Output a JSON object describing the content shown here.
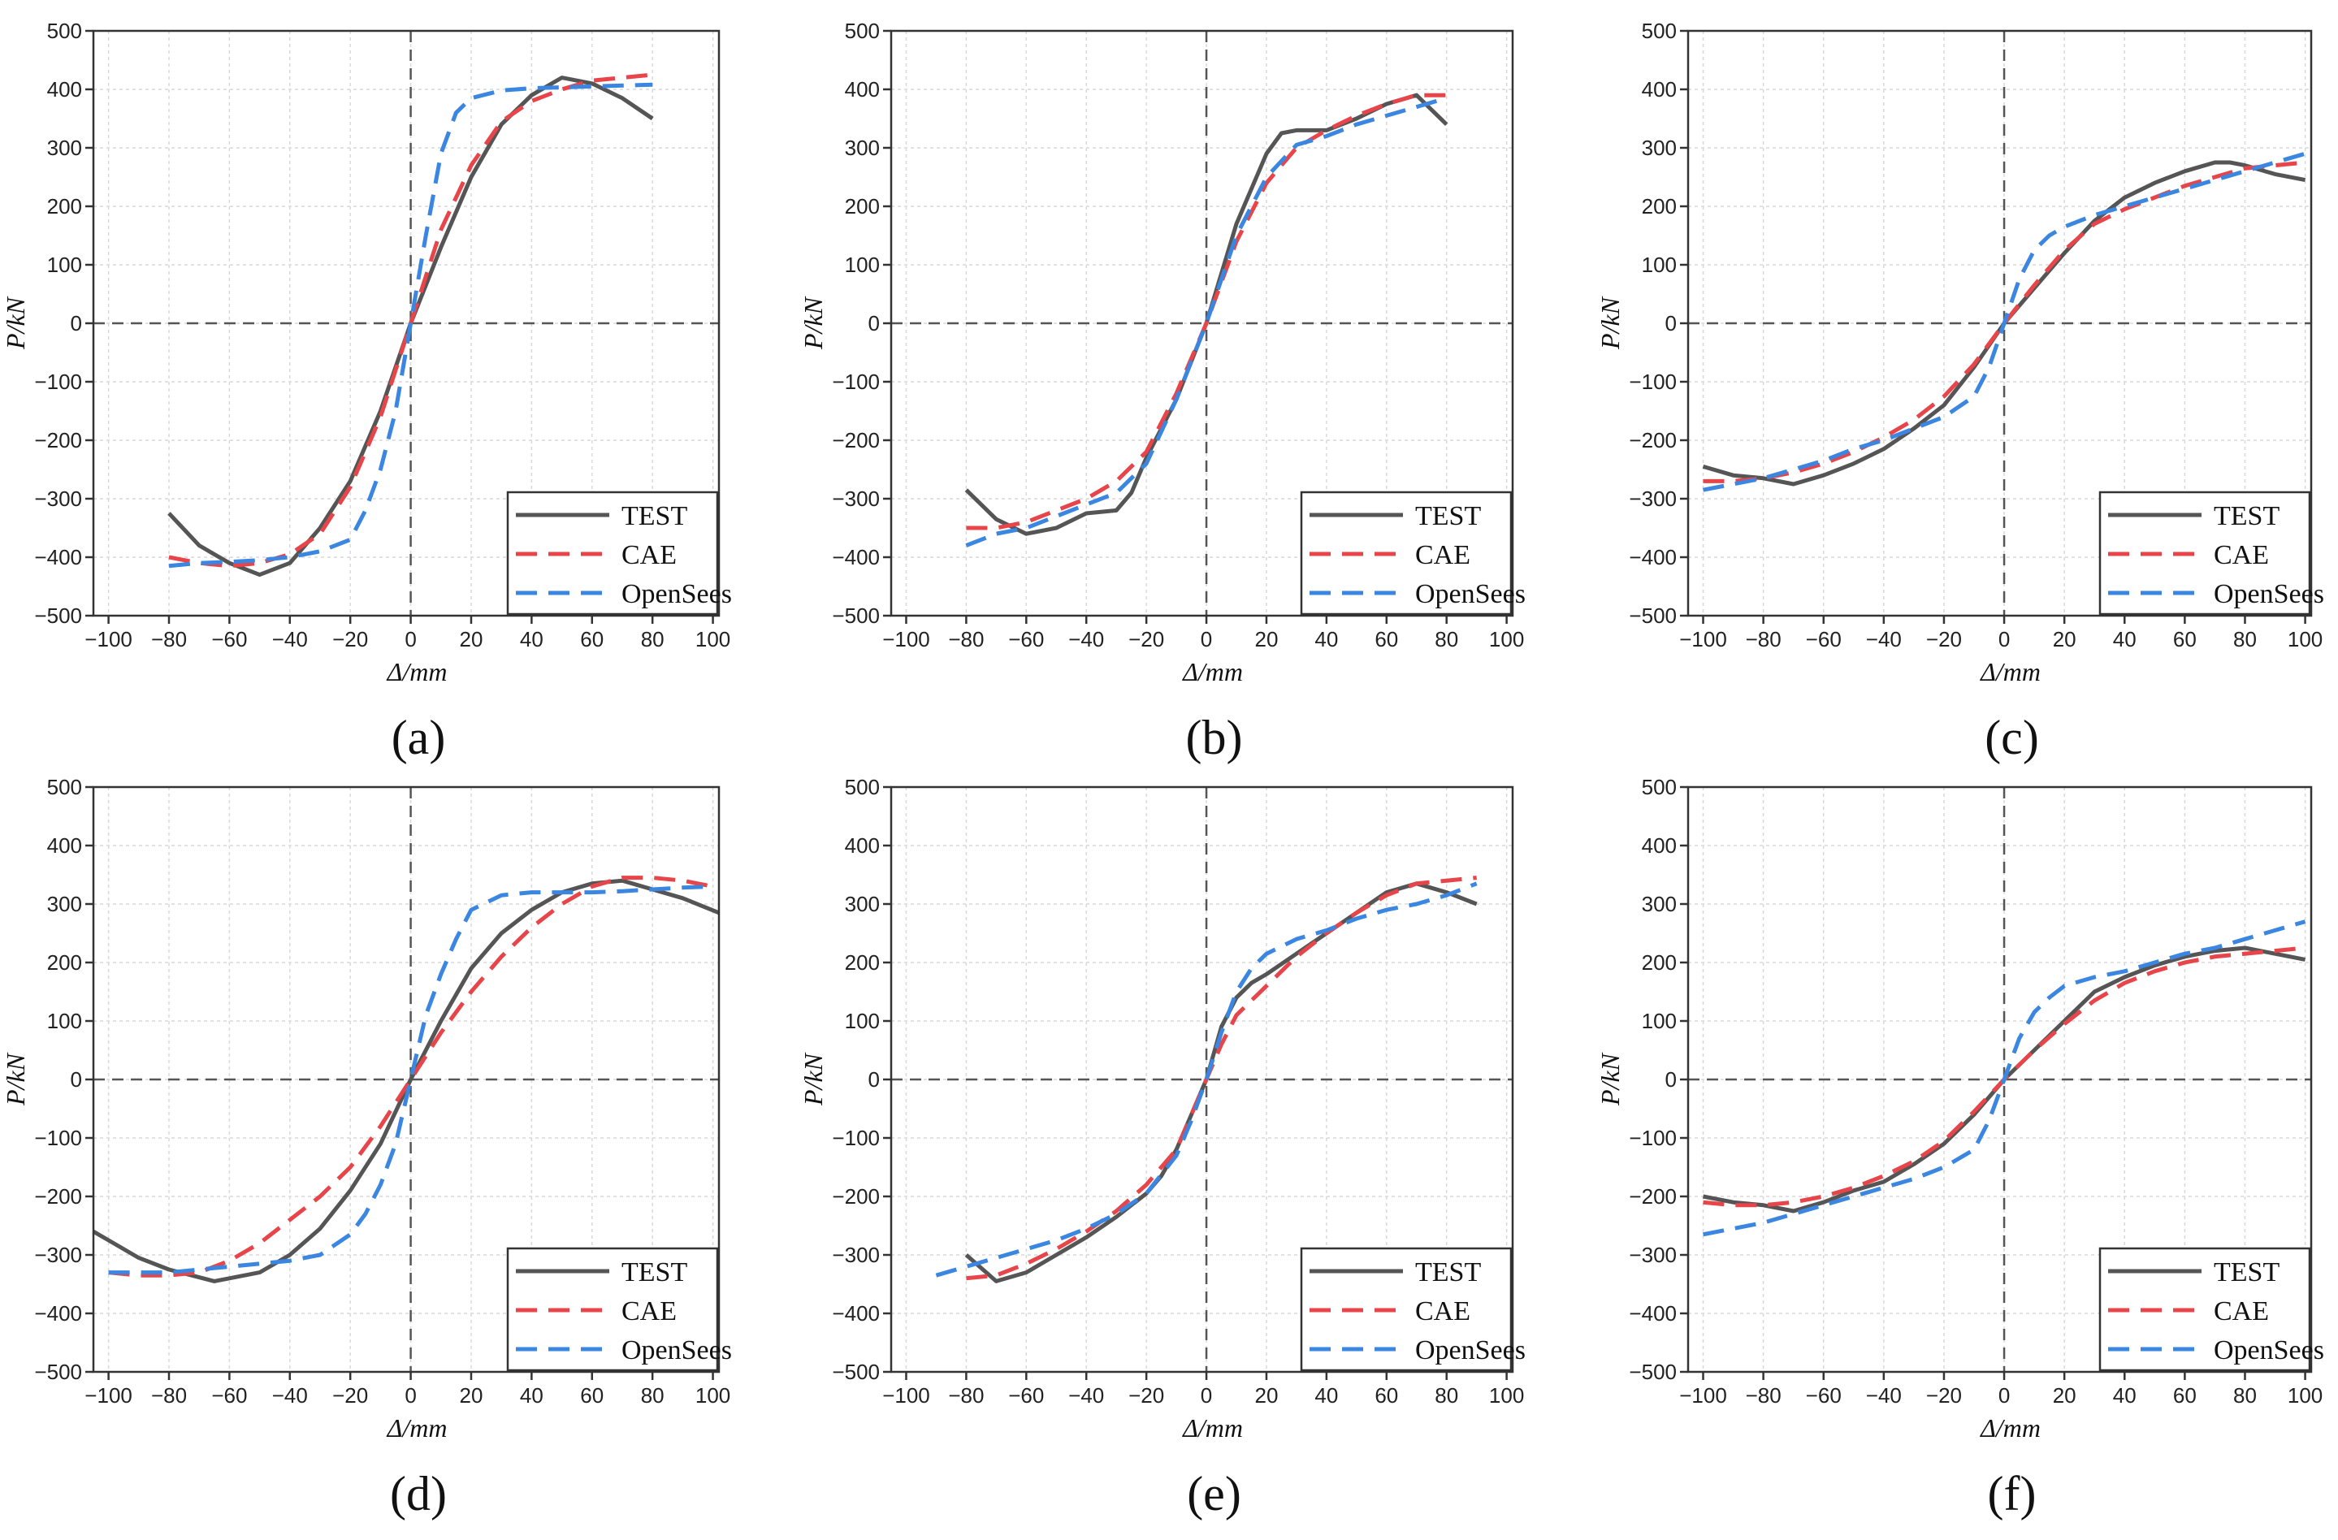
{
  "figure": {
    "x_axis_label": "Δ/mm",
    "y_axis_label": "P/kN",
    "legend": [
      "TEST",
      "CAE",
      "OpenSees"
    ],
    "colors": {
      "TEST": "#555555",
      "CAE": "#e8454a",
      "OpenSees": "#3a86e0",
      "grid": "#d9d9d9",
      "zero_line": "#555555"
    }
  },
  "chart_data": [
    {
      "type": "line",
      "panel_label": "(a)",
      "xlabel": "Δ/mm",
      "ylabel": "P/kN",
      "xlim": [
        -105,
        102
      ],
      "ylim": [
        -500,
        500
      ],
      "xticks": [
        -100,
        -80,
        -60,
        -40,
        -20,
        0,
        20,
        40,
        60,
        80,
        100
      ],
      "yticks": [
        -500,
        -400,
        -300,
        -200,
        -100,
        0,
        100,
        200,
        300,
        400,
        500
      ],
      "series": [
        {
          "name": "TEST",
          "x": [
            -80,
            -70,
            -60,
            -50,
            -40,
            -30,
            -20,
            -10,
            0,
            10,
            20,
            30,
            40,
            50,
            60,
            70,
            80
          ],
          "y": [
            -325,
            -380,
            -410,
            -430,
            -410,
            -350,
            -270,
            -150,
            0,
            130,
            250,
            340,
            390,
            420,
            410,
            385,
            350
          ]
        },
        {
          "name": "CAE",
          "x": [
            -80,
            -70,
            -60,
            -50,
            -40,
            -30,
            -20,
            -10,
            0,
            10,
            20,
            30,
            40,
            50,
            60,
            70,
            80
          ],
          "y": [
            -400,
            -410,
            -415,
            -410,
            -395,
            -360,
            -280,
            -160,
            0,
            160,
            270,
            345,
            380,
            400,
            415,
            420,
            425
          ]
        },
        {
          "name": "OpenSees",
          "x": [
            -80,
            -70,
            -60,
            -50,
            -40,
            -30,
            -20,
            -15,
            -10,
            -5,
            0,
            5,
            10,
            15,
            20,
            30,
            40,
            60,
            80
          ],
          "y": [
            -415,
            -410,
            -408,
            -405,
            -400,
            -390,
            -370,
            -320,
            -250,
            -150,
            0,
            150,
            290,
            360,
            385,
            398,
            402,
            405,
            408
          ]
        }
      ]
    },
    {
      "type": "line",
      "panel_label": "(b)",
      "xlabel": "Δ/mm",
      "ylabel": "P/kN",
      "xlim": [
        -105,
        102
      ],
      "ylim": [
        -500,
        500
      ],
      "xticks": [
        -100,
        -80,
        -60,
        -40,
        -20,
        0,
        20,
        40,
        60,
        80,
        100
      ],
      "yticks": [
        -500,
        -400,
        -300,
        -200,
        -100,
        0,
        100,
        200,
        300,
        400,
        500
      ],
      "series": [
        {
          "name": "TEST",
          "x": [
            -80,
            -70,
            -60,
            -50,
            -40,
            -30,
            -25,
            -20,
            -10,
            0,
            10,
            20,
            25,
            30,
            40,
            50,
            60,
            70,
            80
          ],
          "y": [
            -285,
            -335,
            -360,
            -350,
            -325,
            -320,
            -290,
            -230,
            -130,
            0,
            170,
            290,
            325,
            330,
            330,
            350,
            375,
            390,
            340
          ]
        },
        {
          "name": "CAE",
          "x": [
            -80,
            -70,
            -60,
            -50,
            -40,
            -30,
            -20,
            -10,
            0,
            10,
            20,
            30,
            40,
            50,
            60,
            70,
            80
          ],
          "y": [
            -350,
            -350,
            -340,
            -320,
            -300,
            -270,
            -220,
            -120,
            0,
            140,
            240,
            300,
            330,
            355,
            375,
            390,
            390
          ]
        },
        {
          "name": "OpenSees",
          "x": [
            -80,
            -70,
            -60,
            -50,
            -40,
            -30,
            -20,
            -10,
            0,
            10,
            20,
            30,
            40,
            50,
            60,
            70,
            80
          ],
          "y": [
            -380,
            -360,
            -350,
            -330,
            -310,
            -290,
            -240,
            -130,
            0,
            150,
            250,
            305,
            320,
            340,
            355,
            370,
            385
          ]
        }
      ]
    },
    {
      "type": "line",
      "panel_label": "(c)",
      "xlabel": "Δ/mm",
      "ylabel": "P/kN",
      "xlim": [
        -105,
        102
      ],
      "ylim": [
        -500,
        500
      ],
      "xticks": [
        -100,
        -80,
        -60,
        -40,
        -20,
        0,
        20,
        40,
        60,
        80,
        100
      ],
      "yticks": [
        -500,
        -400,
        -300,
        -200,
        -100,
        0,
        100,
        200,
        300,
        400,
        500
      ],
      "series": [
        {
          "name": "TEST",
          "x": [
            -100,
            -90,
            -80,
            -70,
            -60,
            -50,
            -40,
            -30,
            -20,
            -10,
            0,
            10,
            20,
            30,
            40,
            50,
            60,
            70,
            75,
            80,
            90,
            100
          ],
          "y": [
            -245,
            -260,
            -265,
            -275,
            -260,
            -240,
            -215,
            -180,
            -140,
            -75,
            0,
            60,
            120,
            175,
            215,
            240,
            260,
            275,
            275,
            270,
            255,
            245
          ]
        },
        {
          "name": "CAE",
          "x": [
            -100,
            -90,
            -80,
            -70,
            -60,
            -50,
            -40,
            -30,
            -20,
            -10,
            0,
            10,
            20,
            30,
            40,
            50,
            60,
            70,
            80,
            90,
            100
          ],
          "y": [
            -270,
            -270,
            -265,
            -255,
            -240,
            -220,
            -195,
            -165,
            -125,
            -70,
            0,
            65,
            125,
            170,
            195,
            215,
            235,
            250,
            265,
            270,
            275
          ]
        },
        {
          "name": "OpenSees",
          "x": [
            -100,
            -90,
            -80,
            -70,
            -60,
            -50,
            -40,
            -30,
            -20,
            -10,
            -5,
            0,
            5,
            10,
            15,
            20,
            30,
            40,
            50,
            60,
            70,
            80,
            90,
            100
          ],
          "y": [
            -285,
            -275,
            -265,
            -250,
            -235,
            -215,
            -200,
            -180,
            -160,
            -125,
            -75,
            0,
            75,
            125,
            150,
            165,
            185,
            200,
            215,
            230,
            245,
            260,
            275,
            290
          ]
        }
      ]
    },
    {
      "type": "line",
      "panel_label": "(d)",
      "xlabel": "Δ/mm",
      "ylabel": "P/kN",
      "xlim": [
        -105,
        102
      ],
      "ylim": [
        -500,
        500
      ],
      "xticks": [
        -100,
        -80,
        -60,
        -40,
        -20,
        0,
        20,
        40,
        60,
        80,
        100
      ],
      "yticks": [
        -500,
        -400,
        -300,
        -200,
        -100,
        0,
        100,
        200,
        300,
        400,
        500
      ],
      "series": [
        {
          "name": "TEST",
          "x": [
            -105,
            -90,
            -80,
            -65,
            -50,
            -40,
            -30,
            -20,
            -10,
            0,
            10,
            20,
            30,
            40,
            50,
            60,
            70,
            80,
            90,
            102
          ],
          "y": [
            -260,
            -305,
            -325,
            -345,
            -330,
            -300,
            -255,
            -190,
            -110,
            0,
            100,
            190,
            250,
            290,
            320,
            335,
            340,
            325,
            310,
            285
          ]
        },
        {
          "name": "CAE",
          "x": [
            -100,
            -90,
            -80,
            -70,
            -60,
            -50,
            -40,
            -30,
            -20,
            -10,
            0,
            10,
            20,
            30,
            40,
            50,
            60,
            70,
            80,
            90,
            100
          ],
          "y": [
            -330,
            -335,
            -335,
            -330,
            -310,
            -280,
            -240,
            -200,
            -150,
            -80,
            0,
            80,
            150,
            210,
            260,
            300,
            330,
            345,
            345,
            340,
            330
          ]
        },
        {
          "name": "OpenSees",
          "x": [
            -100,
            -90,
            -80,
            -70,
            -60,
            -50,
            -40,
            -30,
            -20,
            -15,
            -10,
            -5,
            0,
            5,
            10,
            15,
            20,
            30,
            40,
            50,
            60,
            70,
            80,
            90,
            100
          ],
          "y": [
            -330,
            -330,
            -330,
            -325,
            -320,
            -315,
            -310,
            -300,
            -265,
            -230,
            -180,
            -110,
            0,
            110,
            180,
            240,
            290,
            315,
            320,
            320,
            320,
            322,
            325,
            328,
            330
          ]
        }
      ]
    },
    {
      "type": "line",
      "panel_label": "(e)",
      "xlabel": "Δ/mm",
      "ylabel": "P/kN",
      "xlim": [
        -105,
        102
      ],
      "ylim": [
        -500,
        500
      ],
      "xticks": [
        -100,
        -80,
        -60,
        -40,
        -20,
        0,
        20,
        40,
        60,
        80,
        100
      ],
      "yticks": [
        -500,
        -400,
        -300,
        -200,
        -100,
        0,
        100,
        200,
        300,
        400,
        500
      ],
      "series": [
        {
          "name": "TEST",
          "x": [
            -80,
            -70,
            -60,
            -50,
            -40,
            -30,
            -20,
            -15,
            -10,
            -5,
            0,
            5,
            10,
            15,
            20,
            30,
            40,
            50,
            60,
            70,
            80,
            90
          ],
          "y": [
            -300,
            -345,
            -330,
            -300,
            -270,
            -235,
            -195,
            -165,
            -120,
            -60,
            0,
            90,
            140,
            165,
            180,
            215,
            250,
            285,
            320,
            335,
            320,
            300
          ]
        },
        {
          "name": "CAE",
          "x": [
            -80,
            -70,
            -60,
            -50,
            -40,
            -30,
            -20,
            -10,
            -5,
            0,
            5,
            10,
            20,
            30,
            40,
            50,
            60,
            70,
            80,
            90
          ],
          "y": [
            -340,
            -335,
            -315,
            -290,
            -260,
            -225,
            -180,
            -120,
            -60,
            0,
            60,
            110,
            160,
            210,
            250,
            285,
            315,
            335,
            340,
            345
          ]
        },
        {
          "name": "OpenSees",
          "x": [
            -90,
            -80,
            -70,
            -60,
            -50,
            -40,
            -30,
            -20,
            -10,
            -5,
            0,
            5,
            10,
            15,
            20,
            30,
            40,
            50,
            60,
            70,
            80,
            90
          ],
          "y": [
            -335,
            -320,
            -305,
            -290,
            -275,
            -255,
            -230,
            -195,
            -130,
            -70,
            0,
            80,
            150,
            190,
            215,
            240,
            255,
            275,
            290,
            300,
            315,
            335
          ]
        }
      ]
    },
    {
      "type": "line",
      "panel_label": "(f)",
      "xlabel": "Δ/mm",
      "ylabel": "P/kN",
      "xlim": [
        -105,
        102
      ],
      "ylim": [
        -500,
        500
      ],
      "xticks": [
        -100,
        -80,
        -60,
        -40,
        -20,
        0,
        20,
        40,
        60,
        80,
        100
      ],
      "yticks": [
        -500,
        -400,
        -300,
        -200,
        -100,
        0,
        100,
        200,
        300,
        400,
        500
      ],
      "series": [
        {
          "name": "TEST",
          "x": [
            -100,
            -90,
            -80,
            -70,
            -60,
            -50,
            -40,
            -30,
            -20,
            -10,
            0,
            10,
            20,
            30,
            40,
            50,
            60,
            70,
            80,
            90,
            100
          ],
          "y": [
            -200,
            -210,
            -215,
            -225,
            -210,
            -190,
            -175,
            -145,
            -110,
            -60,
            0,
            50,
            100,
            150,
            175,
            195,
            210,
            220,
            225,
            215,
            205
          ]
        },
        {
          "name": "CAE",
          "x": [
            -100,
            -90,
            -80,
            -70,
            -60,
            -50,
            -40,
            -30,
            -20,
            -10,
            0,
            10,
            20,
            30,
            40,
            50,
            60,
            70,
            80,
            90,
            100
          ],
          "y": [
            -210,
            -215,
            -215,
            -210,
            -200,
            -185,
            -165,
            -140,
            -105,
            -55,
            0,
            50,
            95,
            135,
            165,
            185,
            200,
            210,
            215,
            220,
            225
          ]
        },
        {
          "name": "OpenSees",
          "x": [
            -100,
            -90,
            -80,
            -70,
            -60,
            -50,
            -40,
            -30,
            -20,
            -10,
            -5,
            0,
            5,
            10,
            15,
            20,
            30,
            40,
            50,
            60,
            70,
            80,
            90,
            100
          ],
          "y": [
            -265,
            -255,
            -245,
            -230,
            -215,
            -200,
            -185,
            -170,
            -150,
            -120,
            -70,
            0,
            70,
            115,
            140,
            160,
            175,
            185,
            200,
            215,
            225,
            240,
            255,
            270
          ]
        }
      ]
    }
  ]
}
